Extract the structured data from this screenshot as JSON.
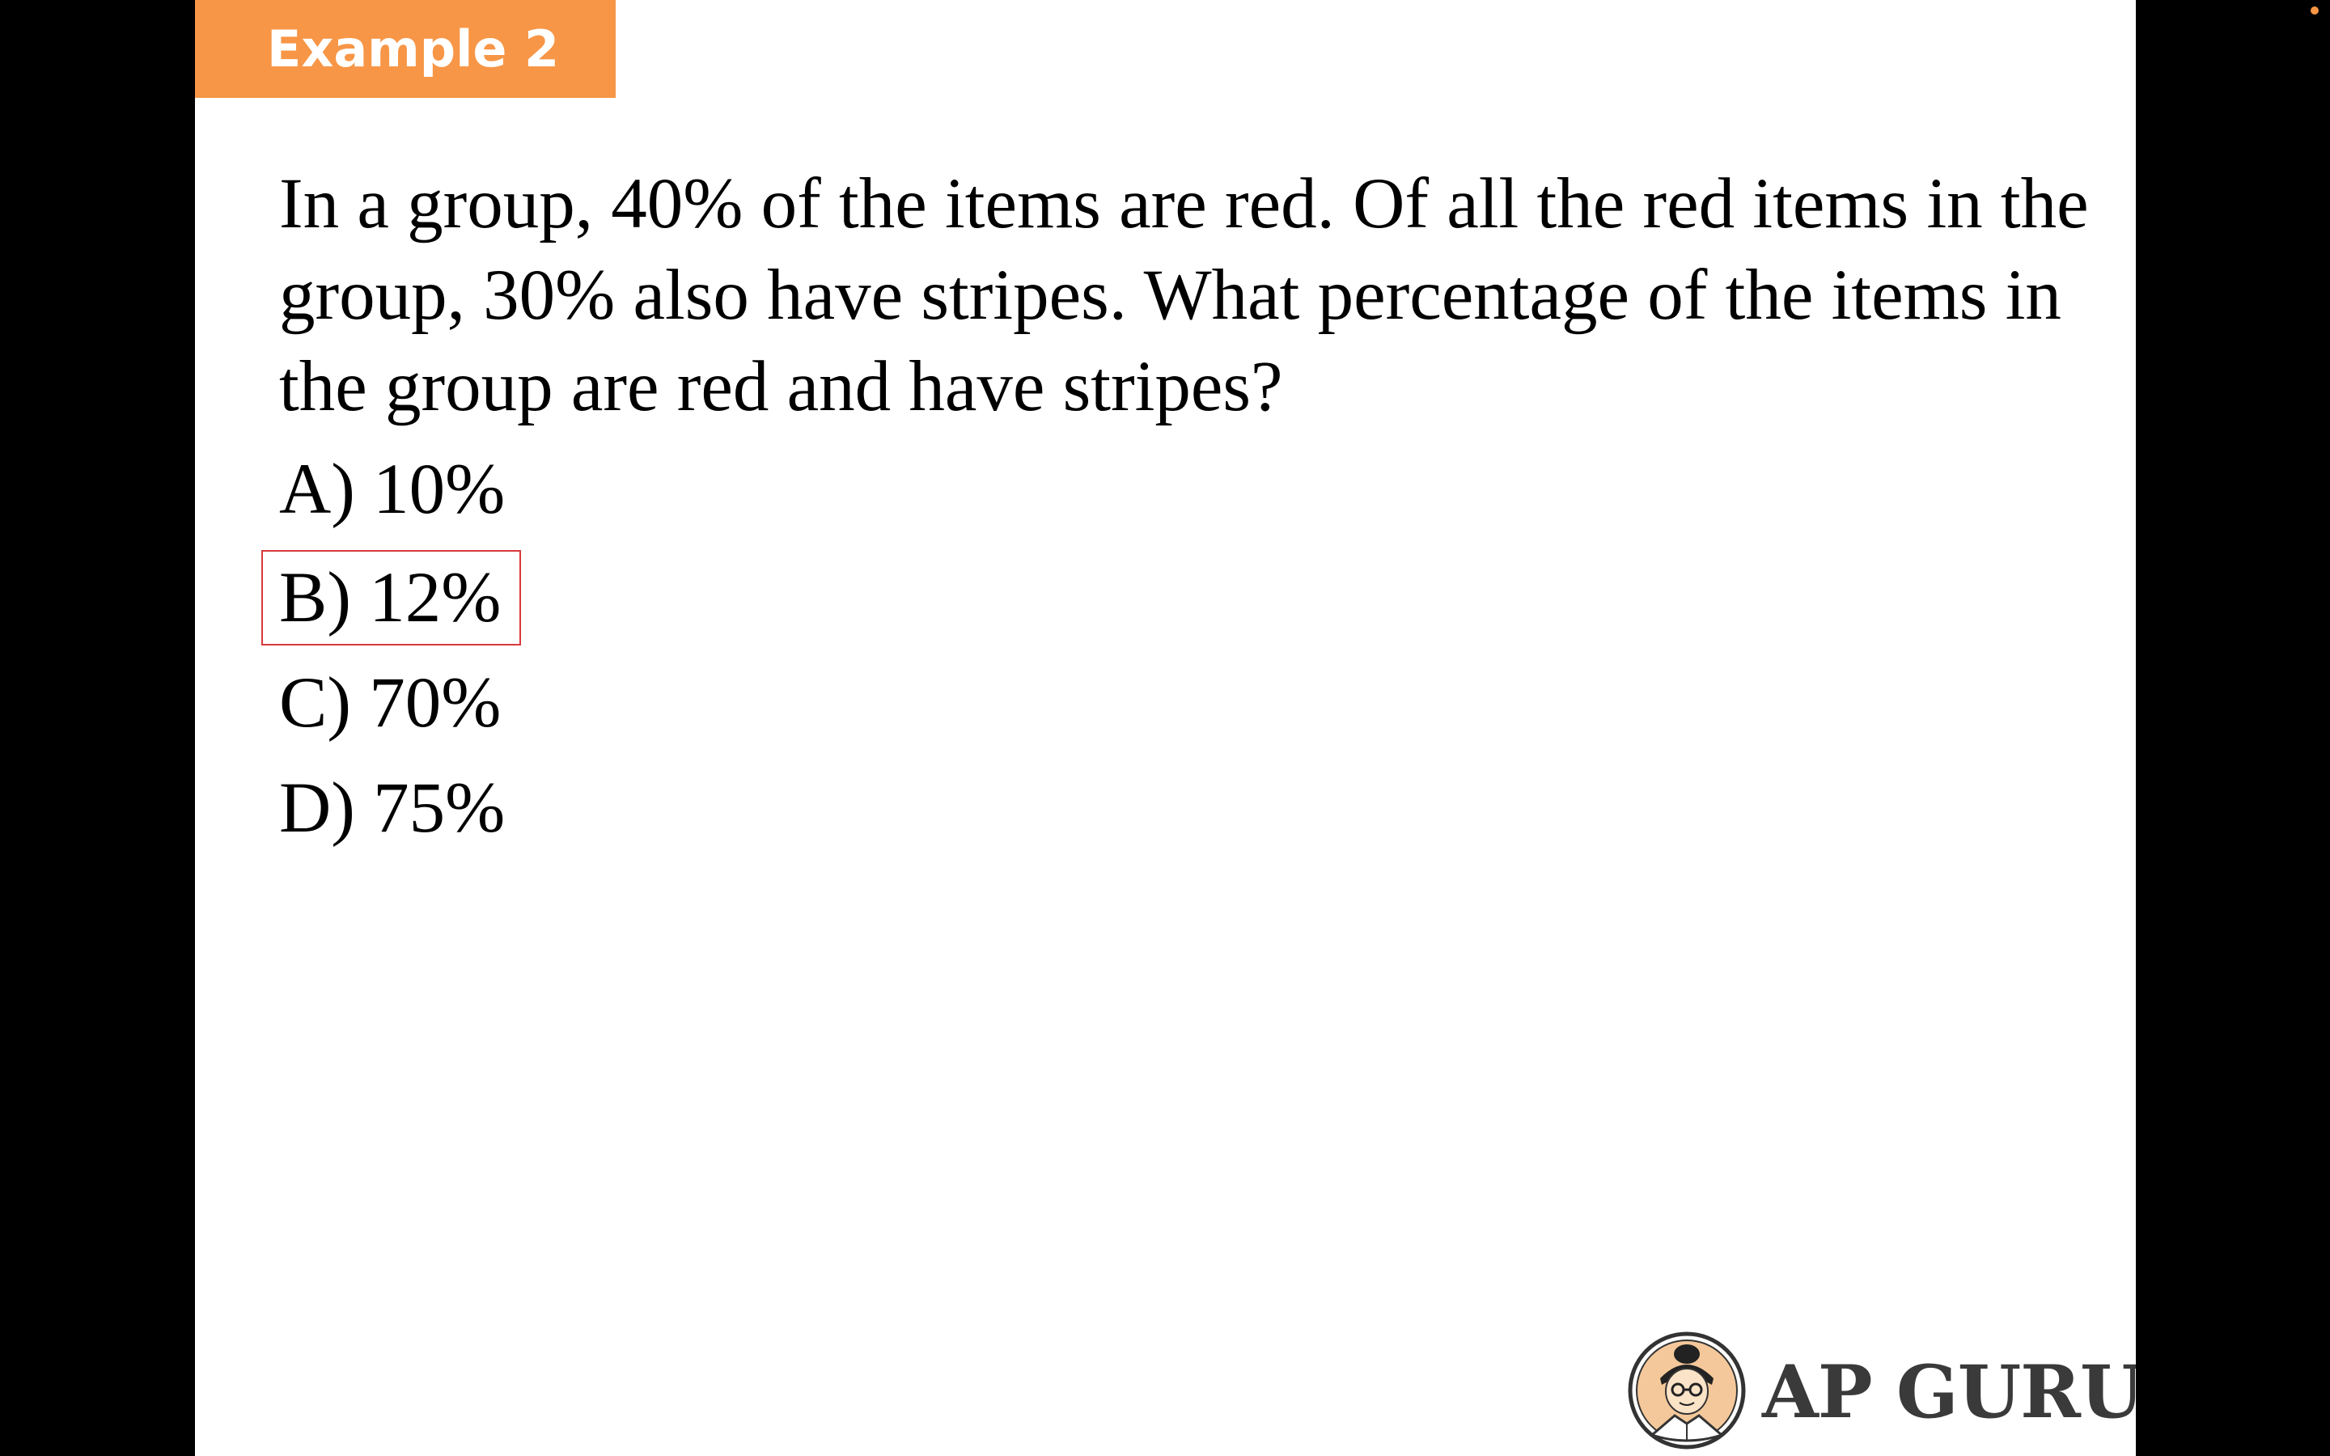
{
  "slide": {
    "tag_label": "Example 2",
    "question": "In a group, 40% of the items are red. Of all the red items in the group, 30% also have stripes. What percentage of the items in the group are red and have stripes?",
    "choices": [
      {
        "label": "A) 10%"
      },
      {
        "label": "B) 12%"
      },
      {
        "label": "C) 70%"
      },
      {
        "label": "D) 75%"
      }
    ],
    "highlighted_choice": "B",
    "logo_text": "AP GURU"
  },
  "colors": {
    "tag_background": "#f79646",
    "highlight_border": "#d9383a",
    "background_side": "#000000",
    "slide_background": "#ffffff",
    "logo_text": "#3a3a3a"
  },
  "icons": {
    "logo": "ap-guru-mascot-icon",
    "recording": "recording-indicator-icon"
  }
}
